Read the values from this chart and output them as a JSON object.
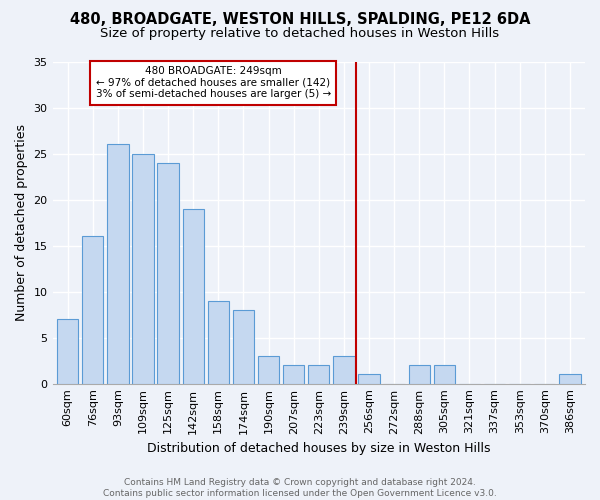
{
  "title": "480, BROADGATE, WESTON HILLS, SPALDING, PE12 6DA",
  "subtitle": "Size of property relative to detached houses in Weston Hills",
  "xlabel": "Distribution of detached houses by size in Weston Hills",
  "ylabel": "Number of detached properties",
  "footer": "Contains HM Land Registry data © Crown copyright and database right 2024.\nContains public sector information licensed under the Open Government Licence v3.0.",
  "categories": [
    "60sqm",
    "76sqm",
    "93sqm",
    "109sqm",
    "125sqm",
    "142sqm",
    "158sqm",
    "174sqm",
    "190sqm",
    "207sqm",
    "223sqm",
    "239sqm",
    "256sqm",
    "272sqm",
    "288sqm",
    "305sqm",
    "321sqm",
    "337sqm",
    "353sqm",
    "370sqm",
    "386sqm"
  ],
  "values": [
    7,
    16,
    26,
    25,
    24,
    19,
    9,
    8,
    3,
    2,
    2,
    3,
    1,
    0,
    2,
    2,
    0,
    0,
    0,
    0,
    1
  ],
  "bar_color": "#c5d8f0",
  "bar_edge_color": "#5b9bd5",
  "vline_index": 12,
  "vline_color": "#c00000",
  "annotation_title": "480 BROADGATE: 249sqm",
  "annotation_line1": "← 97% of detached houses are smaller (142)",
  "annotation_line2": "3% of semi-detached houses are larger (5) →",
  "annotation_box_color": "#c00000",
  "ylim": [
    0,
    35
  ],
  "yticks": [
    0,
    5,
    10,
    15,
    20,
    25,
    30,
    35
  ],
  "background_color": "#eef2f9",
  "grid_color": "#ffffff",
  "title_fontsize": 10.5,
  "subtitle_fontsize": 9.5,
  "axis_label_fontsize": 9,
  "tick_fontsize": 8,
  "footer_fontsize": 6.5
}
